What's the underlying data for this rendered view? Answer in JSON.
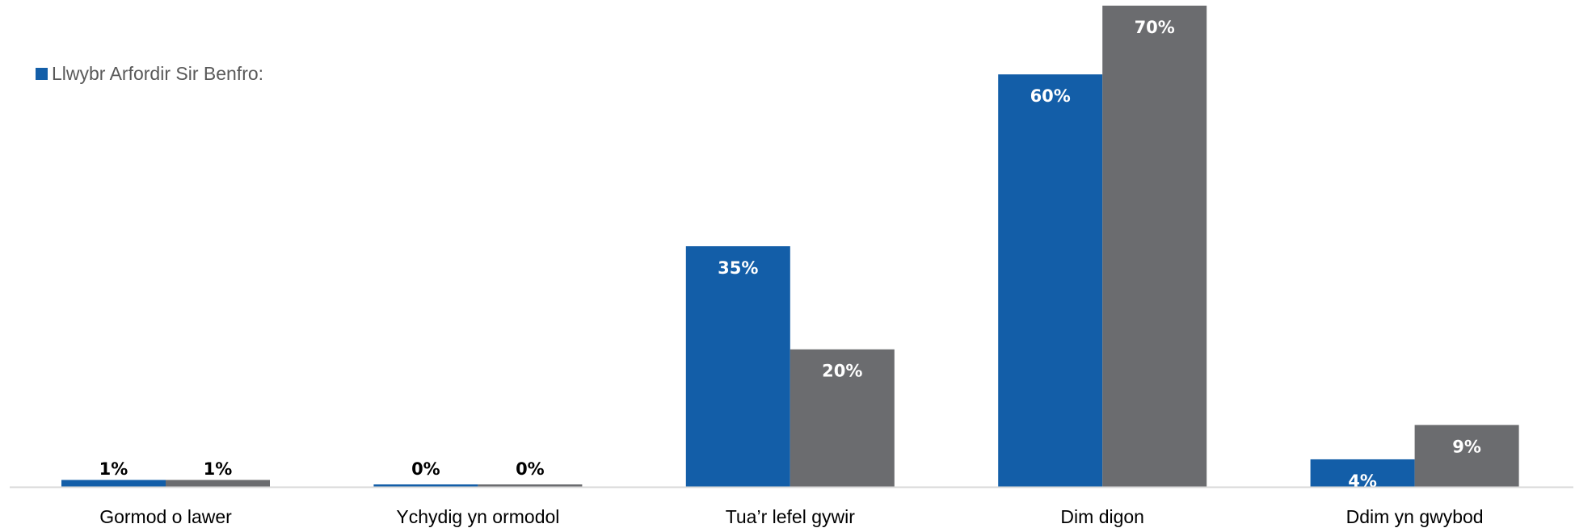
{
  "chart_data": {
    "type": "bar",
    "categories": [
      "Gormod o lawer",
      "Ychydig yn ormodol",
      "Tua’r lefel gywir",
      "Dim digon",
      "Ddim yn gwybod"
    ],
    "series": [
      {
        "name": "Llwybr Arfordir Sir Benfro:",
        "color": "#135ea8",
        "values": [
          1,
          0,
          35,
          60,
          4
        ],
        "labels": [
          "1%",
          "0%",
          "35%",
          "60%",
          "4%"
        ]
      },
      {
        "color": "#6b6c6f",
        "values": [
          1,
          0,
          20,
          70,
          9
        ],
        "labels": [
          "1%",
          "0%",
          "20%",
          "70%",
          "9%"
        ]
      }
    ],
    "ylim": [
      0,
      70
    ],
    "grid": false,
    "legend_position": "top-left"
  }
}
